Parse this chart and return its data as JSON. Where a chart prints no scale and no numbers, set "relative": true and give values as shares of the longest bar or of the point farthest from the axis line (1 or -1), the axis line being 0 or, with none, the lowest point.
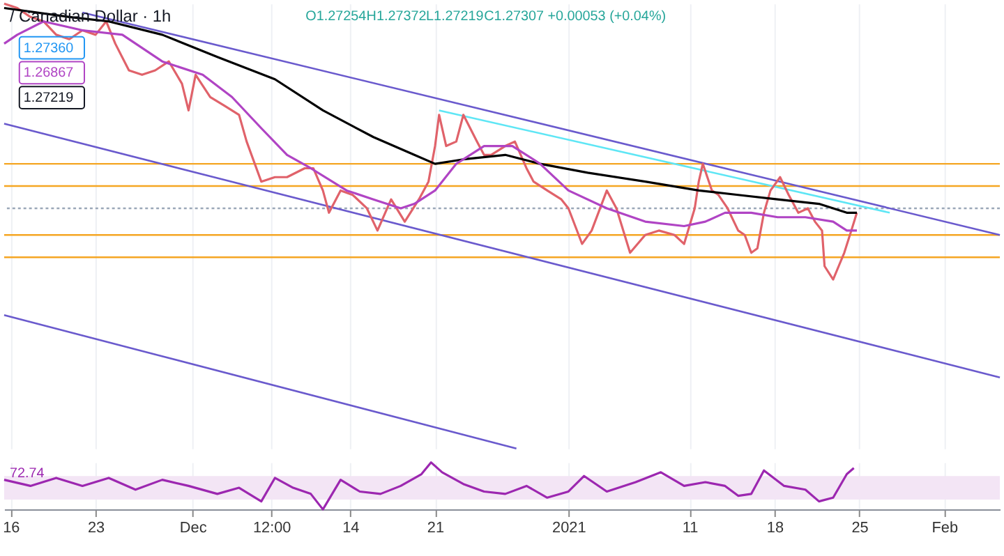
{
  "chart_data": [
    {
      "type": "line",
      "title": "/ Canadian Dollar · 1h",
      "relative": true,
      "xlim": [
        "2020-11-15T11:00",
        "2021-02-05T14:00"
      ],
      "tick_labels": false,
      "grid": "x",
      "xticks": [
        {
          "value": "2020-11-16",
          "label": null
        },
        {
          "value": "2020-11-23",
          "label": null
        },
        {
          "value": "2020-12-01",
          "label": null
        },
        {
          "value": "2020-12-07T12:00",
          "label": null
        },
        {
          "value": "2020-12-14",
          "label": null
        },
        {
          "value": "2020-12-21",
          "label": null
        },
        {
          "value": "2021-01-01",
          "label": null
        },
        {
          "value": "2021-01-11",
          "label": null
        },
        {
          "value": "2021-01-18",
          "label": null
        },
        {
          "value": "2021-01-25",
          "label": null
        },
        {
          "value": "2021-02-01",
          "label": null
        }
      ],
      "annotations": [
        "O1.27254",
        "H1.27372",
        "L1.27219",
        "C1.27307",
        "+0.00053 (+0.04%)",
        "1.27360",
        "1.26867",
        "1.27219"
      ],
      "ref_lines": [
        {
          "axis": "y",
          "value": 0.64,
          "color": "#f5a623"
        },
        {
          "axis": "y",
          "value": 0.59,
          "color": "#f5a623"
        },
        {
          "axis": "y",
          "value": 0.54,
          "color": "#9aa7b8",
          "line_style": "dotted"
        },
        {
          "axis": "y",
          "value": 0.48,
          "color": "#f5a623"
        },
        {
          "axis": "y",
          "value": 0.43,
          "color": "#f5a623"
        }
      ],
      "series": [
        {
          "color": "#6a5acd",
          "x": [
            "2020-11-21T22:00",
            "2021-02-05T14:00"
          ],
          "values": [
            0.98,
            0.48
          ]
        },
        {
          "color": "#6a5acd",
          "x": [
            "2020-11-15T11:00",
            "2021-02-05T14:00"
          ],
          "values": [
            0.73,
            0.16
          ]
        },
        {
          "color": "#6a5acd",
          "x": [
            "2020-11-15T11:00",
            "2020-12-27T17:00"
          ],
          "values": [
            0.3,
            0
          ]
        },
        {
          "color": "#5ee6f5",
          "x": [
            "2020-12-21T08:00",
            "2021-01-27T12:00"
          ],
          "values": [
            0.76,
            0.53
          ]
        },
        {
          "color": "#e0626a",
          "x": [
            "2020-11-15T11:00",
            "2020-11-16T13:00",
            "2020-11-17T15:00",
            "2020-11-18T17:00",
            "2020-11-19T18:00",
            "2020-11-20T20:00",
            "2020-11-21T22:00",
            "2020-11-23T00:00",
            "2020-11-23T21:00",
            "2020-11-24T15:00",
            "2020-11-25T18:00",
            "2020-11-26T20:00",
            "2020-11-27T22:00",
            "2020-11-29T01:00",
            "2020-11-30T03:00",
            "2020-11-30T16:00",
            "2020-12-01T06:00",
            "2020-12-02T11:00",
            "2020-12-03T16:00",
            "2020-12-04T20:00",
            "2020-12-05T11:00",
            "2020-12-06T16:00",
            "2020-12-07T19:00",
            "2020-12-08T19:00",
            "2020-12-10T06:00",
            "2020-12-10T23:00",
            "2020-12-11T18:00",
            "2020-12-12T06:00",
            "2020-12-13T05:00",
            "2020-12-14T05:00",
            "2020-12-15T09:00",
            "2020-12-16T06:00",
            "2020-12-17T09:00",
            "2020-12-18T12:00",
            "2020-12-19T16:00",
            "2020-12-20T11:00",
            "2020-12-21T00:00",
            "2020-12-21T08:00",
            "2020-12-21T22:00",
            "2020-12-22T18:00",
            "2020-12-23T08:00",
            "2020-12-24T11:00",
            "2020-12-25T01:00",
            "2020-12-25T15:00",
            "2020-12-26T19:00",
            "2020-12-27T14:00",
            "2020-12-28T13:00",
            "2020-12-29T03:00",
            "2020-12-30T06:00",
            "2020-12-31T10:00",
            "2021-01-01T00:00",
            "2021-01-02T03:00",
            "2021-01-02T22:00",
            "2021-01-04T04:00",
            "2021-01-04T23:00",
            "2021-01-06T02:00",
            "2021-01-07T08:00",
            "2021-01-08T11:00",
            "2021-01-09T18:00",
            "2021-01-10T13:00",
            "2021-01-11T10:00",
            "2021-01-11T18:00",
            "2021-01-12T02:00",
            "2021-01-12T20:00",
            "2021-01-13T09:00",
            "2021-01-14T03:00",
            "2021-01-15T00:00",
            "2021-01-15T13:00",
            "2021-01-16T02:00",
            "2021-01-16T14:00",
            "2021-01-17T03:00",
            "2021-01-17T16:00",
            "2021-01-18T11:00",
            "2021-01-19T04:00",
            "2021-01-19T23:00",
            "2021-01-20T18:00",
            "2021-01-21T08:00",
            "2021-01-21T22:00",
            "2021-01-22T03:00",
            "2021-01-22T20:00",
            "2021-01-23T07:00",
            "2021-01-23T18:00",
            "2021-01-24T08:00",
            "2021-01-24T19:00"
          ],
          "values": [
            1,
            0.99,
            0.97,
            0.96,
            0.93,
            0.92,
            0.94,
            0.93,
            0.96,
            0.91,
            0.85,
            0.84,
            0.85,
            0.87,
            0.82,
            0.76,
            0.84,
            0.79,
            0.77,
            0.75,
            0.69,
            0.6,
            0.61,
            0.61,
            0.63,
            0.63,
            0.58,
            0.53,
            0.58,
            0.57,
            0.54,
            0.49,
            0.56,
            0.51,
            0.56,
            0.6,
            0.68,
            0.75,
            0.68,
            0.69,
            0.75,
            0.69,
            0.66,
            0.66,
            0.68,
            0.69,
            0.63,
            0.6,
            0.58,
            0.56,
            0.54,
            0.46,
            0.49,
            0.58,
            0.54,
            0.44,
            0.48,
            0.49,
            0.48,
            0.46,
            0.54,
            0.6,
            0.64,
            0.58,
            0.57,
            0.54,
            0.49,
            0.48,
            0.44,
            0.45,
            0.53,
            0.58,
            0.61,
            0.57,
            0.53,
            0.54,
            0.51,
            0.49,
            0.41,
            0.38,
            0.41,
            0.44,
            0.49,
            0.53
          ]
        },
        {
          "color": "#000000",
          "x": [
            "2020-11-15T11:00",
            "2020-11-20T20:00",
            "2020-11-24T02:00",
            "2020-11-28T12:00",
            "2020-12-03T01:00",
            "2020-12-07T19:00",
            "2020-12-11T18:00",
            "2020-12-15T22:00",
            "2020-12-19T07:00",
            "2020-12-21T00:00",
            "2020-12-23T08:00",
            "2020-12-26T19:00",
            "2020-12-29T16:00",
            "2021-01-02T14:00",
            "2021-01-07T08:00",
            "2021-01-11T18:00",
            "2021-01-15T00:00",
            "2021-01-18T06:00",
            "2021-01-21T16:00",
            "2021-01-23T23:00",
            "2021-01-24T19:00"
          ],
          "values": [
            0.99,
            0.97,
            0.96,
            0.93,
            0.88,
            0.83,
            0.76,
            0.7,
            0.66,
            0.64,
            0.65,
            0.66,
            0.64,
            0.62,
            0.6,
            0.58,
            0.57,
            0.56,
            0.55,
            0.53,
            0.53
          ]
        },
        {
          "color": "#b044c4",
          "x": [
            "2020-11-15T11:00",
            "2020-11-16T13:00",
            "2020-11-18T17:00",
            "2020-11-21T22:00",
            "2020-11-25T05:00",
            "2020-11-28T12:00",
            "2020-12-01T20:00",
            "2020-12-04T06:00",
            "2020-12-06T16:00",
            "2020-12-08T19:00",
            "2020-12-10T18:00",
            "2020-12-13T17:00",
            "2020-12-15T22:00",
            "2020-12-18T04:00",
            "2020-12-19T07:00",
            "2020-12-21T00:00",
            "2020-12-22T18:00",
            "2020-12-25T01:00",
            "2020-12-27T09:00",
            "2020-12-29T16:00",
            "2021-01-01T00:00",
            "2021-01-04T04:00",
            "2021-01-07T08:00",
            "2021-01-10T13:00",
            "2021-01-12T07:00",
            "2021-01-13T22:00",
            "2021-01-16T02:00",
            "2021-01-18T06:00",
            "2021-01-20T13:00",
            "2021-01-22T20:00",
            "2021-01-23T23:00",
            "2021-01-24T19:00"
          ],
          "values": [
            0.91,
            0.93,
            0.96,
            0.94,
            0.93,
            0.87,
            0.84,
            0.79,
            0.72,
            0.66,
            0.63,
            0.58,
            0.56,
            0.54,
            0.55,
            0.58,
            0.64,
            0.68,
            0.68,
            0.64,
            0.58,
            0.54,
            0.51,
            0.5,
            0.51,
            0.53,
            0.53,
            0.52,
            0.52,
            0.51,
            0.49,
            0.49
          ]
        }
      ]
    },
    {
      "type": "line",
      "relative": true,
      "xlim": [
        "2020-11-15T11:00",
        "2021-02-05T14:00"
      ],
      "tick_labels": "x",
      "grid": "x",
      "xticks": [
        {
          "value": "2020-11-16",
          "label": "16"
        },
        {
          "value": "2020-11-23",
          "label": "23"
        },
        {
          "value": "2020-12-01",
          "label": "Dec"
        },
        {
          "value": "2020-12-07T12:00",
          "label": "12:00"
        },
        {
          "value": "2020-12-14",
          "label": "14"
        },
        {
          "value": "2020-12-21",
          "label": "21"
        },
        {
          "value": "2021-01-01",
          "label": "2021"
        },
        {
          "value": "2021-01-11",
          "label": "11"
        },
        {
          "value": "2021-01-18",
          "label": "18"
        },
        {
          "value": "2021-01-25",
          "label": "25"
        },
        {
          "value": "2021-02-01",
          "label": "Feb"
        }
      ],
      "annotations": [
        "72.74"
      ],
      "bands": [
        {
          "axis": "y",
          "from": 0.21,
          "to": 0.71,
          "color": "#f3e5f5"
        }
      ],
      "series": [
        {
          "color": "#9c27b0",
          "x": [
            "2020-11-15T11:00",
            "2020-11-17T15:00",
            "2020-11-19T18:00",
            "2020-11-21T22:00",
            "2020-11-24T02:00",
            "2020-11-26T07:00",
            "2020-11-28T12:00",
            "2020-11-30T16:00",
            "2020-12-03T01:00",
            "2020-12-04T20:00",
            "2020-12-06T16:00",
            "2020-12-07T19:00",
            "2020-12-09T07:00",
            "2020-12-10T18:00",
            "2020-12-11T18:00",
            "2020-12-13T05:00",
            "2020-12-14T19:00",
            "2020-12-16T12:00",
            "2020-12-18T04:00",
            "2020-12-19T21:00",
            "2020-12-20T16:00",
            "2020-12-21T14:00",
            "2020-12-23T08:00",
            "2020-12-25T01:00",
            "2020-12-26T19:00",
            "2020-12-28T13:00",
            "2020-12-30T06:00",
            "2021-01-01T00:00",
            "2021-01-02T07:00",
            "2021-01-04T04:00",
            "2021-01-06T13:00",
            "2021-01-08T15:00",
            "2021-01-10T13:00",
            "2021-01-12T07:00",
            "2021-01-13T22:00",
            "2021-01-15T00:00",
            "2021-01-16T02:00",
            "2021-01-17T03:00",
            "2021-01-18T19:00",
            "2021-01-20T13:00",
            "2021-01-21T16:00",
            "2021-01-22T20:00",
            "2021-01-23T23:00",
            "2021-01-24T13:00"
          ],
          "values": [
            0.63,
            0.5,
            0.67,
            0.5,
            0.67,
            0.42,
            0.63,
            0.5,
            0.33,
            0.46,
            0.17,
            0.67,
            0.46,
            0.33,
            0,
            0.63,
            0.38,
            0.33,
            0.5,
            0.75,
            1,
            0.79,
            0.54,
            0.38,
            0.33,
            0.5,
            0.25,
            0.38,
            0.71,
            0.38,
            0.58,
            0.79,
            0.5,
            0.58,
            0.5,
            0.29,
            0.33,
            0.83,
            0.5,
            0.42,
            0.17,
            0.25,
            0.75,
            0.88
          ]
        }
      ]
    }
  ]
}
